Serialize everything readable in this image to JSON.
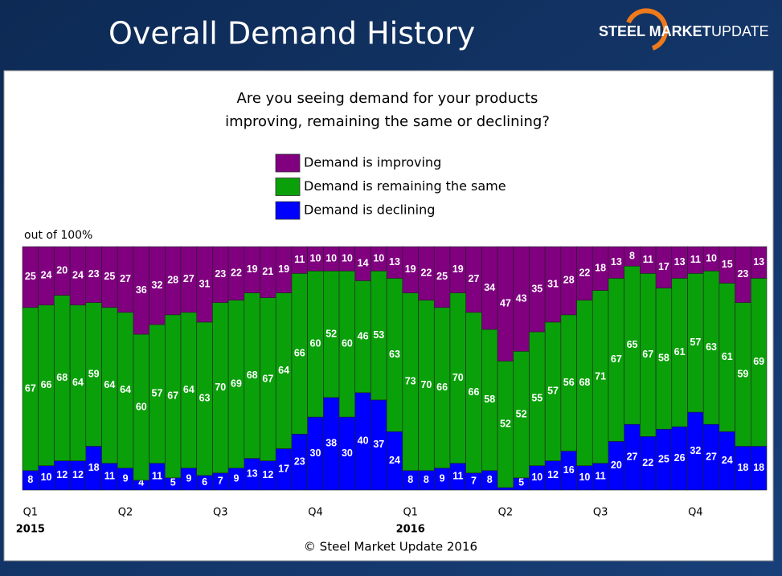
{
  "header": {
    "title": "Overall Demand History",
    "logo_bold": "STEEL MARKET",
    "logo_light": "UPDATE"
  },
  "chart_data": {
    "type": "stacked-bar",
    "title": "Are you seeing demand for your products",
    "title_line2": "improving, remaining the same or declining?",
    "y_axis_label": "out of 100%",
    "footer": "© Steel Market Update 2016",
    "ylim": [
      0,
      100
    ],
    "categories": [
      "Q1",
      null,
      null,
      null,
      null,
      null,
      "Q2",
      null,
      null,
      null,
      null,
      null,
      "Q3",
      null,
      null,
      null,
      null,
      null,
      "Q4",
      null,
      null,
      null,
      null,
      null,
      "Q1",
      null,
      null,
      null,
      null,
      null,
      "Q2",
      null,
      null,
      null,
      null,
      null,
      "Q3",
      null,
      null,
      null,
      null,
      null,
      "Q4",
      null,
      null,
      null,
      null
    ],
    "years": [
      "2015",
      null,
      null,
      null,
      null,
      null,
      null,
      null,
      null,
      null,
      null,
      null,
      null,
      null,
      null,
      null,
      null,
      null,
      null,
      null,
      null,
      null,
      null,
      null,
      "2016",
      null,
      null,
      null,
      null,
      null,
      null,
      null,
      null,
      null,
      null,
      null,
      null,
      null,
      null,
      null,
      null,
      null,
      null,
      null,
      null,
      null,
      null
    ],
    "series": [
      {
        "name": "Demand is improving",
        "color": "#800080",
        "values": [
          25,
          24,
          20,
          24,
          23,
          25,
          27,
          36,
          32,
          28,
          27,
          31,
          23,
          22,
          19,
          21,
          19,
          11,
          10,
          10,
          10,
          14,
          10,
          13,
          19,
          22,
          25,
          19,
          27,
          34,
          47,
          43,
          35,
          31,
          28,
          22,
          18,
          13,
          8,
          11,
          17,
          13,
          11,
          10,
          15,
          23,
          13
        ]
      },
      {
        "name": "Demand is remaining the same",
        "color": "#0aa00a",
        "values": [
          67,
          66,
          68,
          64,
          59,
          64,
          64,
          60,
          57,
          67,
          64,
          63,
          70,
          69,
          68,
          67,
          64,
          66,
          60,
          52,
          60,
          46,
          53,
          63,
          73,
          70,
          66,
          70,
          66,
          58,
          52,
          52,
          55,
          57,
          56,
          68,
          71,
          67,
          65,
          67,
          58,
          61,
          57,
          63,
          61,
          59,
          69
        ]
      },
      {
        "name": "Demand is declining",
        "color": "#0000ff",
        "values": [
          8,
          10,
          12,
          12,
          18,
          11,
          9,
          4,
          11,
          5,
          9,
          6,
          7,
          9,
          13,
          12,
          17,
          23,
          30,
          38,
          30,
          40,
          37,
          24,
          8,
          8,
          9,
          11,
          7,
          8,
          1,
          5,
          10,
          12,
          16,
          10,
          11,
          20,
          27,
          22,
          25,
          26,
          32,
          27,
          24,
          18,
          18
        ]
      }
    ]
  }
}
